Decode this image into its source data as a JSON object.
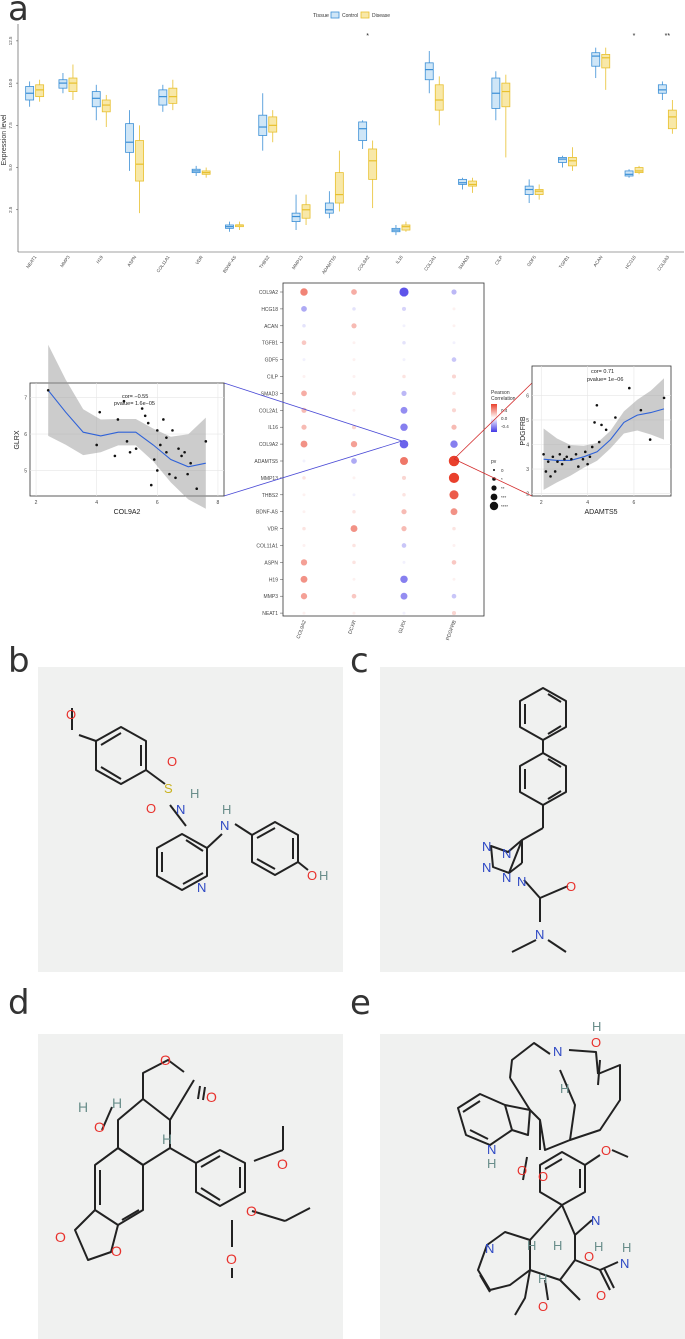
{
  "panels": {
    "a": "a",
    "b": "b",
    "c": "c",
    "d": "d",
    "e": "e"
  },
  "boxplot": {
    "legend_title": "Tissue",
    "legend_items": [
      "Control",
      "Disease"
    ],
    "colors": {
      "control": "#3b8fd6",
      "control_fill": "#cfe6f7",
      "disease": "#e8c02e",
      "disease_fill": "#f8e8a8"
    },
    "ylabel": "Expression level",
    "yticks": [
      "2.5",
      "5.0",
      "7.5",
      "10.0",
      "12.5"
    ],
    "genes": [
      "NEAT1",
      "MMP3",
      "H19",
      "ASPN",
      "COL11A1",
      "VDR",
      "BDNF-AS",
      "THBS2",
      "MMP13",
      "ADAMTS5",
      "COL9A2",
      "IL16",
      "COL2A1",
      "SMAD3",
      "CILP",
      "GDF5",
      "TGFB1",
      "ACAN",
      "HCG18",
      "COL9A3"
    ],
    "significance": [
      {
        "gene": "COL9A2",
        "label": "*"
      },
      {
        "gene": "HCG18",
        "label": "*"
      },
      {
        "gene": "COL9A3",
        "label": "**"
      }
    ],
    "chart_data": {
      "type": "box",
      "ylim": [
        0,
        13.5
      ],
      "series": [
        {
          "name": "Control",
          "boxes": [
            [
              8.6,
              9.0,
              9.4,
              9.8,
              10.1
            ],
            [
              9.4,
              9.7,
              10.0,
              10.2,
              10.6
            ],
            [
              7.8,
              8.6,
              9.1,
              9.5,
              9.9
            ],
            [
              4.8,
              5.9,
              6.5,
              7.6,
              8.4
            ],
            [
              8.3,
              8.7,
              9.2,
              9.6,
              9.9
            ],
            [
              4.5,
              4.7,
              4.8,
              4.9,
              5.1
            ],
            [
              1.2,
              1.4,
              1.5,
              1.6,
              1.8
            ],
            [
              6.0,
              6.9,
              7.4,
              8.1,
              9.4
            ],
            [
              1.3,
              1.8,
              2.1,
              2.3,
              3.4
            ],
            [
              2.0,
              2.3,
              2.5,
              2.9,
              3.6
            ],
            [
              6.1,
              6.6,
              7.3,
              7.7,
              7.8
            ],
            [
              1.0,
              1.2,
              1.3,
              1.4,
              1.6
            ],
            [
              9.4,
              10.2,
              10.8,
              11.2,
              11.9
            ],
            [
              3.7,
              4.0,
              4.1,
              4.3,
              4.4
            ],
            [
              7.8,
              8.5,
              9.4,
              10.3,
              10.7
            ],
            [
              2.9,
              3.4,
              3.7,
              3.9,
              4.3
            ],
            [
              5.0,
              5.3,
              5.5,
              5.6,
              5.7
            ],
            [
              10.3,
              11.0,
              11.6,
              11.8,
              12.1
            ],
            [
              4.4,
              4.5,
              4.6,
              4.8,
              4.9
            ],
            [
              9.0,
              9.4,
              9.6,
              9.9,
              10.1
            ]
          ]
        },
        {
          "name": "Disease",
          "boxes": [
            [
              8.9,
              9.2,
              9.6,
              9.9,
              10.2
            ],
            [
              9.0,
              9.5,
              10.0,
              10.3,
              11.1
            ],
            [
              7.4,
              8.3,
              8.7,
              9.0,
              9.3
            ],
            [
              2.3,
              4.2,
              5.2,
              6.6,
              7.5
            ],
            [
              8.4,
              8.8,
              9.2,
              9.7,
              10.2
            ],
            [
              4.4,
              4.6,
              4.7,
              4.8,
              5.0
            ],
            [
              1.3,
              1.5,
              1.6,
              1.6,
              1.8
            ],
            [
              6.5,
              7.1,
              7.5,
              8.0,
              8.4
            ],
            [
              1.6,
              2.0,
              2.5,
              2.8,
              3.4
            ],
            [
              2.4,
              2.9,
              3.4,
              4.7,
              6.0
            ],
            [
              2.6,
              4.3,
              5.4,
              6.1,
              6.6
            ],
            [
              1.2,
              1.3,
              1.5,
              1.6,
              1.8
            ],
            [
              7.5,
              8.4,
              9.0,
              9.9,
              10.4
            ],
            [
              3.5,
              3.9,
              4.0,
              4.2,
              4.4
            ],
            [
              5.6,
              8.6,
              9.5,
              10.0,
              10.5
            ],
            [
              3.1,
              3.4,
              3.6,
              3.7,
              4.0
            ],
            [
              4.8,
              5.1,
              5.4,
              5.6,
              6.2
            ],
            [
              9.6,
              10.9,
              11.5,
              11.7,
              12.1
            ],
            [
              4.6,
              4.7,
              4.8,
              5.0,
              5.1
            ],
            [
              7.0,
              7.3,
              8.0,
              8.4,
              9.0
            ]
          ]
        }
      ]
    }
  },
  "dotplot": {
    "rows": [
      "COL9A2",
      "HCG18",
      "ACAN",
      "TGFB1",
      "GDF5",
      "CILP",
      "SMAD3",
      "COL2A1",
      "IL16",
      "COL9A2",
      "ADAMTS5",
      "MMP13",
      "THBS2",
      "BDNF-AS",
      "VDR",
      "COL11A1",
      "ASPN",
      "H19",
      "MMP3",
      "NEAT1"
    ],
    "cols": [
      "COL9A2",
      "DCXR",
      "GLRX",
      "PDGFRB"
    ],
    "legend_title": "Pearson\nCorrelation",
    "legend_ticks": [
      "0.4",
      "0.0",
      "-0.4"
    ],
    "pv_title": "pv",
    "pv_labels": [
      "0",
      "*",
      "**",
      "***",
      "****"
    ],
    "chart_data": {
      "type": "heatmap",
      "values": [
        [
          0.45,
          0.3,
          -0.6,
          -0.25
        ],
        [
          -0.3,
          -0.1,
          -0.15,
          0.05
        ],
        [
          -0.1,
          0.25,
          -0.05,
          0.05
        ],
        [
          0.2,
          0.05,
          -0.1,
          -0.05
        ],
        [
          -0.05,
          0.05,
          -0.05,
          -0.2
        ],
        [
          0.05,
          0.05,
          0.1,
          0.15
        ],
        [
          0.3,
          0.15,
          -0.25,
          0.1
        ],
        [
          0.25,
          0.05,
          -0.4,
          0.15
        ],
        [
          0.25,
          0.15,
          -0.45,
          0.25
        ],
        [
          0.4,
          0.35,
          -0.55,
          -0.45
        ],
        [
          -0.05,
          -0.3,
          0.5,
          0.72
        ],
        [
          0.1,
          0.05,
          0.15,
          0.7
        ],
        [
          0.05,
          -0.05,
          0.1,
          0.6
        ],
        [
          0.05,
          0.1,
          0.25,
          0.4
        ],
        [
          0.1,
          0.4,
          0.25,
          0.1
        ],
        [
          0.05,
          0.1,
          -0.2,
          0.05
        ],
        [
          0.35,
          0.1,
          -0.05,
          0.2
        ],
        [
          0.4,
          0.05,
          -0.45,
          0.05
        ],
        [
          0.35,
          0.2,
          -0.4,
          -0.2
        ],
        [
          0.05,
          0.05,
          -0.05,
          0.15
        ]
      ]
    }
  },
  "scatter_left": {
    "xlabel": "COL9A2",
    "ylabel": "GLRX",
    "annotation_line1": "cor= −0.55",
    "annotation_line2": "pvalue= 1.6e−05",
    "xticks": [
      "2",
      "4",
      "6",
      "8"
    ],
    "yticks": [
      "5",
      "6",
      "7"
    ],
    "chart_data": {
      "type": "scatter",
      "xlim": [
        1.8,
        8.2
      ],
      "ylim": [
        4.3,
        7.4
      ],
      "x": [
        2.4,
        4.0,
        4.1,
        4.6,
        4.7,
        4.9,
        5.0,
        5.1,
        5.3,
        5.5,
        5.6,
        5.7,
        5.8,
        5.9,
        6.0,
        6.0,
        6.1,
        6.2,
        6.3,
        6.3,
        6.4,
        6.5,
        6.6,
        6.7,
        6.8,
        6.9,
        7.0,
        7.1,
        7.3,
        7.6
      ],
      "y": [
        7.2,
        5.7,
        6.6,
        5.4,
        6.4,
        6.9,
        5.8,
        5.5,
        5.6,
        6.7,
        6.5,
        6.3,
        4.6,
        5.3,
        6.1,
        5.0,
        5.7,
        6.4,
        5.9,
        5.5,
        4.9,
        6.1,
        4.8,
        5.6,
        5.4,
        5.5,
        4.9,
        5.2,
        4.5,
        5.8
      ]
    },
    "fit_y": [
      7.2,
      6.6,
      6.05,
      5.95,
      6.05,
      6.05,
      5.7,
      5.3,
      5.1,
      5.2
    ]
  },
  "scatter_right": {
    "xlabel": "ADAMTS5",
    "ylabel": "PDGFRB",
    "annotation_line1": "cor= 0.71",
    "annotation_line2": "pvalue= 1e−06",
    "xticks": [
      "2",
      "4",
      "6"
    ],
    "yticks": [
      "2",
      "3",
      "4",
      "5",
      "6"
    ],
    "chart_data": {
      "type": "scatter",
      "xlim": [
        1.6,
        7.6
      ],
      "ylim": [
        1.9,
        7.2
      ],
      "x": [
        2.1,
        2.2,
        2.3,
        2.4,
        2.5,
        2.6,
        2.7,
        2.8,
        2.9,
        3.0,
        3.1,
        3.2,
        3.3,
        3.5,
        3.6,
        3.8,
        3.9,
        4.0,
        4.1,
        4.2,
        4.3,
        4.4,
        4.5,
        4.6,
        4.8,
        5.2,
        5.8,
        6.3,
        6.7,
        7.3
      ],
      "y": [
        3.6,
        2.9,
        3.3,
        2.7,
        3.5,
        2.9,
        3.3,
        3.6,
        3.2,
        3.4,
        3.5,
        3.9,
        3.4,
        3.6,
        3.1,
        3.4,
        3.7,
        3.2,
        3.5,
        3.9,
        4.9,
        5.6,
        4.1,
        4.8,
        4.6,
        5.1,
        6.3,
        5.4,
        4.2,
        5.9
      ]
    },
    "fit_y": [
      3.4,
      3.35,
      3.35,
      3.5,
      3.7,
      4.2,
      4.9,
      5.2,
      5.3,
      5.45
    ]
  },
  "molecules": {
    "b": {
      "atoms": [
        "O",
        "S",
        "O",
        "O",
        "N",
        "H",
        "N",
        "H",
        "N",
        "O",
        "H"
      ]
    },
    "c": {
      "atoms": [
        "N",
        "N",
        "N",
        "N",
        "N",
        "O",
        "N"
      ]
    },
    "d": {
      "atoms": [
        "O",
        "O",
        "H",
        "O",
        "H",
        "H",
        "O",
        "O",
        "O",
        "O",
        "O"
      ]
    },
    "e": {
      "atoms": [
        "H",
        "O",
        "N",
        "N",
        "H",
        "H",
        "O",
        "O",
        "O",
        "N",
        "N",
        "H",
        "H",
        "O",
        "H",
        "O",
        "H",
        "N",
        "H",
        "O"
      ]
    }
  }
}
